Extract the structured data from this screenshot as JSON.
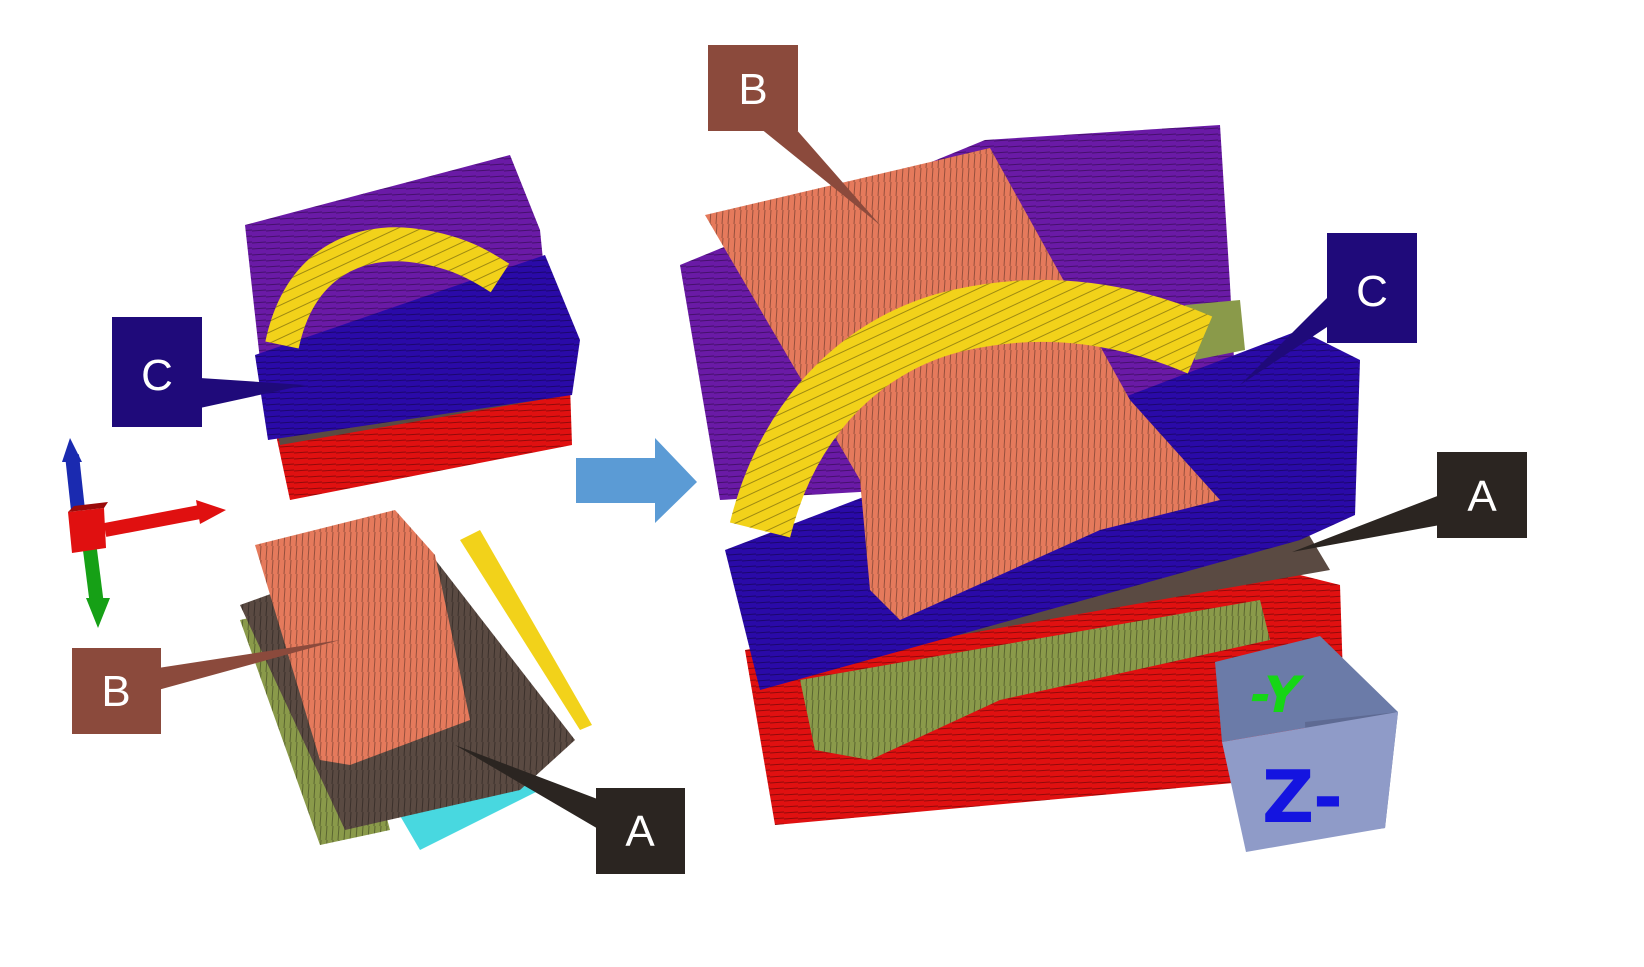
{
  "callouts": [
    {
      "id": "left-c",
      "label": "C",
      "color": "#1f0a7a"
    },
    {
      "id": "left-b",
      "label": "B",
      "color": "#8b4a3c"
    },
    {
      "id": "left-a",
      "label": "A",
      "color": "#2b2521"
    },
    {
      "id": "right-b",
      "label": "B",
      "color": "#8b4a3c"
    },
    {
      "id": "right-c",
      "label": "C",
      "color": "#1f0a7a"
    },
    {
      "id": "right-a",
      "label": "A",
      "color": "#2b2521"
    }
  ],
  "view_cube": {
    "top_label": "-Y",
    "front_label": "Z-",
    "top_color": "#16d616",
    "front_color": "#1414e0"
  },
  "colors": {
    "purple_layer": "#6a1aa6",
    "blue_layer": "#2a0aa8",
    "red_layer": "#e01010",
    "yellow_bundle": "#f2d21a",
    "salmon_bundle": "#e57a5c",
    "brown_bundle": "#5a4a42",
    "olive_bundle": "#8a9a4a",
    "cyan_bundle": "#48d8e0",
    "arrow": "#5b9bd5",
    "axis_x": "#e01010",
    "axis_y": "#16a016",
    "axis_z": "#1a2ab0"
  }
}
